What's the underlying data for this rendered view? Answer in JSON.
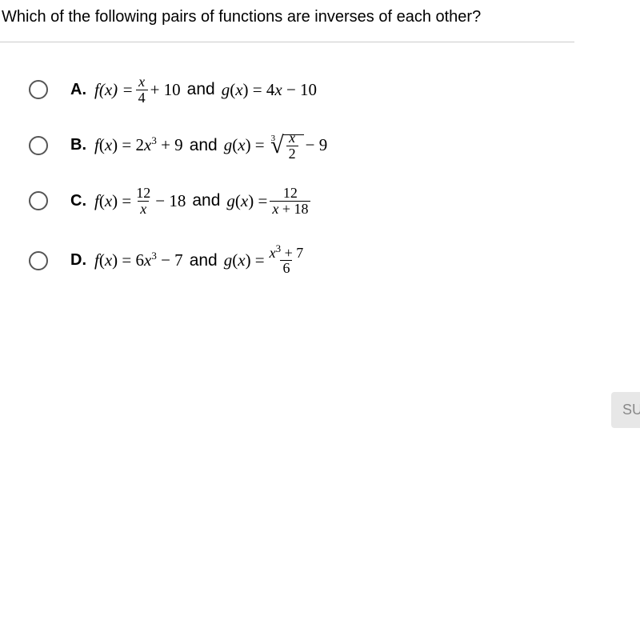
{
  "question": "Which of the following pairs of functions are inverses of each other?",
  "connector": "and",
  "options": {
    "A": {
      "letter": "A.",
      "f_lhs": "f(x) =",
      "f_frac_num": "x",
      "f_frac_den": "4",
      "f_after": "+ 10",
      "g": "g(x) = 4x − 10"
    },
    "B": {
      "letter": "B.",
      "f": "f(x) = 2x",
      "f_exp": "3",
      "f_tail": " + 9",
      "g_lhs": "g(x) =",
      "rad_index": "3",
      "rad_num": "x",
      "rad_den": "2",
      "g_tail": "− 9"
    },
    "C": {
      "letter": "C.",
      "f_lhs": "f(x) =",
      "f_num": "12",
      "f_den": "x",
      "f_tail": "− 18",
      "g_lhs": "g(x) =",
      "g_num": "12",
      "g_den": "x + 18"
    },
    "D": {
      "letter": "D.",
      "f": "f(x) = 6x",
      "f_exp": "3",
      "f_tail": " − 7",
      "g_lhs": "g(x) =",
      "g_num_a": "x",
      "g_num_exp": "3",
      "g_num_b": " + 7",
      "g_den": "6"
    }
  },
  "submit_label": "SU",
  "colors": {
    "text": "#000000",
    "divider": "#cccccc",
    "radio_border": "#555555",
    "submit_bg": "#e7e7e7",
    "submit_fg": "#888888"
  },
  "typography": {
    "question_fontsize": 20,
    "option_fontsize": 20,
    "math_family": "Times New Roman"
  }
}
